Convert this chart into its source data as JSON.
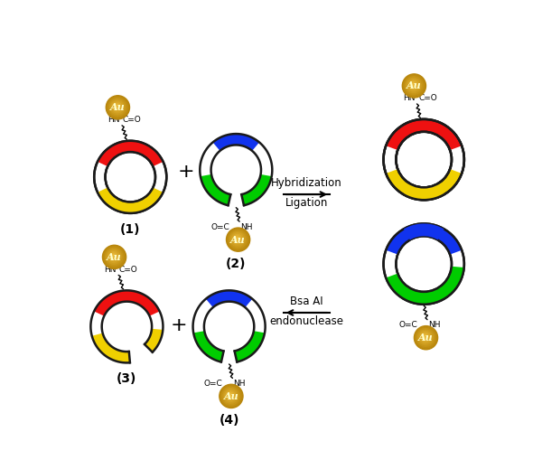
{
  "background": "#ffffff",
  "ring_color": "#1a1a1a",
  "red_color": "#ee1111",
  "yellow_color": "#f0d000",
  "green_color": "#00cc00",
  "blue_color": "#1133ee",
  "gold_body": "#b8860b",
  "gold_mid": "#d4a017",
  "gold_light": "#f0c040",
  "label1": "(1)",
  "label2": "(2)",
  "label3": "(3)",
  "label4": "(4)",
  "arrow1_text1": "Hybridization",
  "arrow1_text2": "Ligation",
  "arrow2_text1": "Bsa AI",
  "arrow2_text2": "endonuclease"
}
